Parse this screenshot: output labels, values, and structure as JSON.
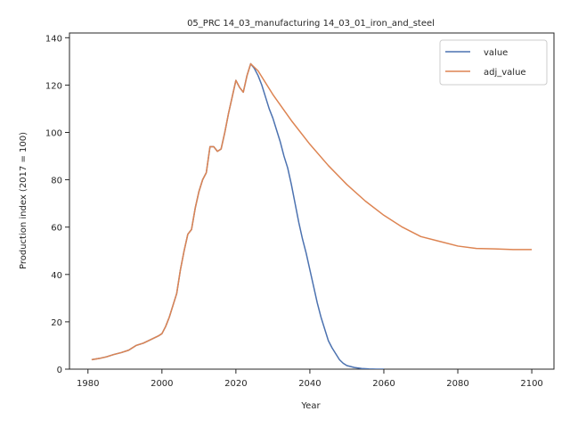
{
  "chart_data": {
    "type": "line",
    "title": "05_PRC 14_03_manufacturing 14_03_01_iron_and_steel",
    "xlabel": "Year",
    "ylabel": "Production index (2017 = 100)",
    "xlim": [
      1975,
      2106
    ],
    "ylim": [
      0,
      142
    ],
    "xticks": [
      1980,
      2000,
      2020,
      2040,
      2060,
      2080,
      2100
    ],
    "yticks": [
      0,
      20,
      40,
      60,
      80,
      100,
      120,
      140
    ],
    "grid": false,
    "legend_position": "top-right",
    "series": [
      {
        "name": "value",
        "color": "#4c72b0",
        "x": [
          1981,
          1983,
          1985,
          1987,
          1989,
          1991,
          1993,
          1995,
          1997,
          1999,
          2000,
          2001,
          2002,
          2003,
          2004,
          2005,
          2006,
          2007,
          2008,
          2009,
          2010,
          2011,
          2012,
          2013,
          2014,
          2015,
          2016,
          2017,
          2018,
          2019,
          2020,
          2021,
          2022,
          2023,
          2024,
          2025,
          2026,
          2027,
          2028,
          2029,
          2030,
          2031,
          2032,
          2033,
          2034,
          2035,
          2036,
          2037,
          2038,
          2039,
          2040,
          2041,
          2042,
          2043,
          2044,
          2045,
          2046,
          2047,
          2048,
          2049,
          2050,
          2052,
          2054,
          2056,
          2058,
          2060
        ],
        "y": [
          4,
          4.5,
          5.2,
          6.2,
          7,
          8,
          10,
          11,
          12.5,
          14,
          15,
          18,
          22,
          27,
          32,
          42,
          50,
          57,
          59,
          68,
          75,
          80,
          83,
          94,
          94,
          92,
          93,
          100,
          108,
          115,
          122,
          119,
          117,
          124,
          129,
          127,
          124,
          120,
          115,
          110,
          106,
          101,
          96,
          90,
          85,
          78,
          70,
          62,
          55,
          49,
          42,
          35,
          28,
          22,
          17,
          12,
          9,
          6.5,
          4,
          2.5,
          1.5,
          0.7,
          0.3,
          0.1,
          0,
          0
        ]
      },
      {
        "name": "adj_value",
        "color": "#dd8452",
        "x": [
          1981,
          1983,
          1985,
          1987,
          1989,
          1991,
          1993,
          1995,
          1997,
          1999,
          2000,
          2001,
          2002,
          2003,
          2004,
          2005,
          2006,
          2007,
          2008,
          2009,
          2010,
          2011,
          2012,
          2013,
          2014,
          2015,
          2016,
          2017,
          2018,
          2019,
          2020,
          2021,
          2022,
          2023,
          2024,
          2026,
          2028,
          2030,
          2035,
          2040,
          2045,
          2050,
          2055,
          2060,
          2065,
          2070,
          2075,
          2080,
          2085,
          2090,
          2095,
          2100
        ],
        "y": [
          4,
          4.5,
          5.2,
          6.2,
          7,
          8,
          10,
          11,
          12.5,
          14,
          15,
          18,
          22,
          27,
          32,
          42,
          50,
          57,
          59,
          68,
          75,
          80,
          83,
          94,
          94,
          92,
          93,
          100,
          108,
          115,
          122,
          119,
          117,
          124,
          129,
          126,
          121,
          116,
          105,
          95,
          86,
          78,
          71,
          65,
          60,
          56,
          54,
          52,
          51,
          50.8,
          50.5,
          50.5
        ]
      }
    ]
  }
}
